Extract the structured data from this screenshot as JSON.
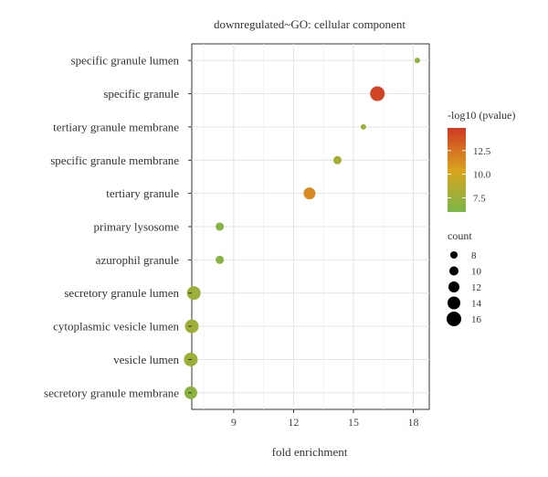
{
  "chart_data": {
    "type": "scatter",
    "title": "downregulated~GO: cellular component",
    "xlabel": "fold enrichment",
    "ylabel": "",
    "xlim": [
      6.9,
      18.8
    ],
    "xticks": [
      9,
      12,
      15,
      18
    ],
    "grid": true,
    "categories": [
      "specific granule lumen",
      "specific granule",
      "tertiary granule membrane",
      "specific granule membrane",
      "tertiary granule",
      "primary lysosome",
      "azurophil granule",
      "secretory granule lumen",
      "cytoplasmic vesicle lumen",
      "vesicle lumen",
      "secretory granule membrane"
    ],
    "points": [
      {
        "category": "specific granule lumen",
        "x": 18.2,
        "neg_log10_p": 7.0,
        "count": 6
      },
      {
        "category": "specific granule",
        "x": 16.2,
        "neg_log10_p": 14.5,
        "count": 16
      },
      {
        "category": "tertiary granule membrane",
        "x": 15.5,
        "neg_log10_p": 7.5,
        "count": 6
      },
      {
        "category": "specific granule membrane",
        "x": 14.2,
        "neg_log10_p": 8.0,
        "count": 9
      },
      {
        "category": "tertiary granule",
        "x": 12.8,
        "neg_log10_p": 11.5,
        "count": 13
      },
      {
        "category": "primary lysosome",
        "x": 8.3,
        "neg_log10_p": 6.5,
        "count": 9
      },
      {
        "category": "azurophil granule",
        "x": 8.3,
        "neg_log10_p": 6.5,
        "count": 9
      },
      {
        "category": "secretory granule lumen",
        "x": 7.0,
        "neg_log10_p": 7.5,
        "count": 15
      },
      {
        "category": "cytoplasmic vesicle lumen",
        "x": 6.9,
        "neg_log10_p": 7.8,
        "count": 15
      },
      {
        "category": "vesicle lumen",
        "x": 6.85,
        "neg_log10_p": 7.7,
        "count": 15
      },
      {
        "category": "secretory granule membrane",
        "x": 6.85,
        "neg_log10_p": 6.8,
        "count": 14
      }
    ],
    "color_legend": {
      "title": "-log10 (pvalue)",
      "range": [
        6.0,
        14.9
      ],
      "ticks": [
        7.5,
        10.0,
        12.5
      ],
      "tick_labels": [
        "7.5",
        "10.0",
        "12.5"
      ],
      "colors": [
        "#7ab648",
        "#d9a31e",
        "#cf3a24"
      ]
    },
    "size_legend": {
      "title": "count",
      "values": [
        8,
        10,
        12,
        14,
        16
      ],
      "labels": [
        "8",
        "10",
        "12",
        "14",
        "16"
      ]
    }
  }
}
